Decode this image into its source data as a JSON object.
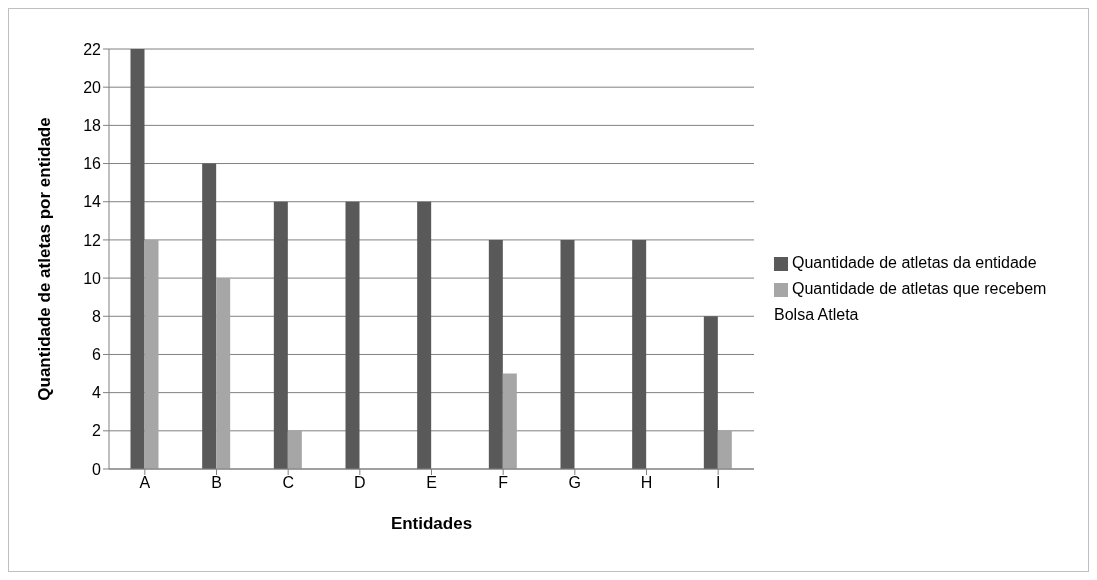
{
  "chart_data": {
    "type": "bar",
    "xlabel": "Entidades",
    "ylabel": "Quantidade de atletas por entidade",
    "categories": [
      "A",
      "B",
      "C",
      "D",
      "E",
      "F",
      "G",
      "H",
      "I"
    ],
    "series": [
      {
        "name": "Quantidade de atletas da entidade",
        "color": "#595959",
        "values": [
          22,
          16,
          14,
          14,
          14,
          12,
          12,
          12,
          8
        ]
      },
      {
        "name": "Quantidade de atletas que recebem Bolsa Atleta",
        "color": "#a6a6a6",
        "values": [
          12,
          10,
          2,
          0,
          0,
          5,
          0,
          0,
          2
        ]
      }
    ],
    "ylim": [
      0,
      22
    ],
    "yticks": [
      0,
      2,
      4,
      6,
      8,
      10,
      12,
      14,
      16,
      18,
      20,
      22
    ],
    "grid": "y",
    "legend": "right"
  }
}
